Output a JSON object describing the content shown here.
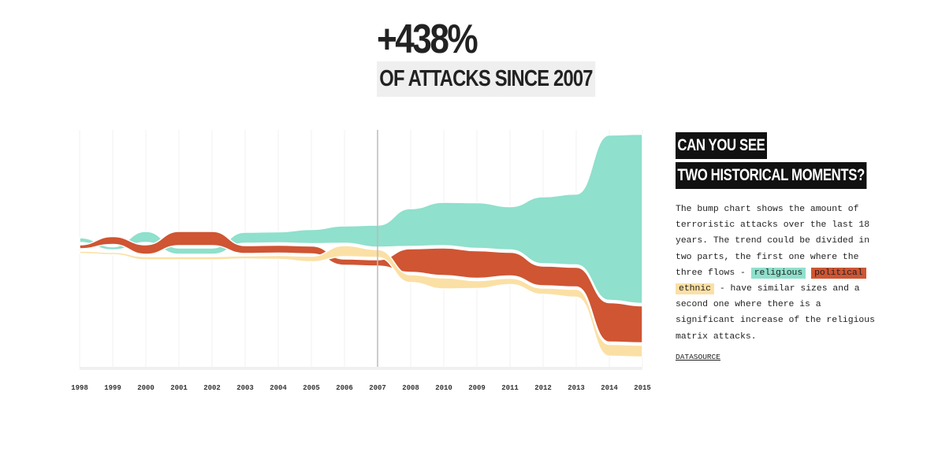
{
  "headline": {
    "value": "+438%",
    "subtitle": "OF ATTACKS SINCE 2007"
  },
  "chart_data": {
    "type": "bump",
    "categories": [
      "1998",
      "1999",
      "2000",
      "2001",
      "2002",
      "2003",
      "2004",
      "2005",
      "2006",
      "2007",
      "2008",
      "2010",
      "2009",
      "2011",
      "2012",
      "2013",
      "2014",
      "2015"
    ],
    "series": [
      {
        "name": "religious",
        "color": "#8fe0cc",
        "values": [
          6,
          4,
          14,
          8,
          8,
          14,
          14,
          18,
          22,
          28,
          48,
          55,
          58,
          55,
          85,
          90,
          210,
          215
        ]
      },
      {
        "name": "political",
        "color": "#cf5533",
        "values": [
          5,
          10,
          12,
          18,
          18,
          10,
          10,
          10,
          8,
          8,
          30,
          35,
          35,
          30,
          25,
          25,
          50,
          47
        ]
      },
      {
        "name": "ethnic",
        "color": "#fbe0a5",
        "values": [
          3,
          3,
          4,
          4,
          4,
          4,
          5,
          7,
          14,
          10,
          10,
          14,
          10,
          8,
          8,
          10,
          15,
          15
        ]
      }
    ],
    "reference_line": "2007",
    "grid": true
  },
  "panel": {
    "title": [
      "CAN YOU SEE",
      "TWO HISTORICAL MOMENTS?"
    ],
    "text": [
      "The bump chart shows the amount of terroristic attacks over the last 18 years. The trend could be divided in two parts, the first one where the three flows - ",
      " - have similar sizes and a second one where there is a significant increase of the religious matrix attacks."
    ],
    "link": "DATASOURCE"
  }
}
